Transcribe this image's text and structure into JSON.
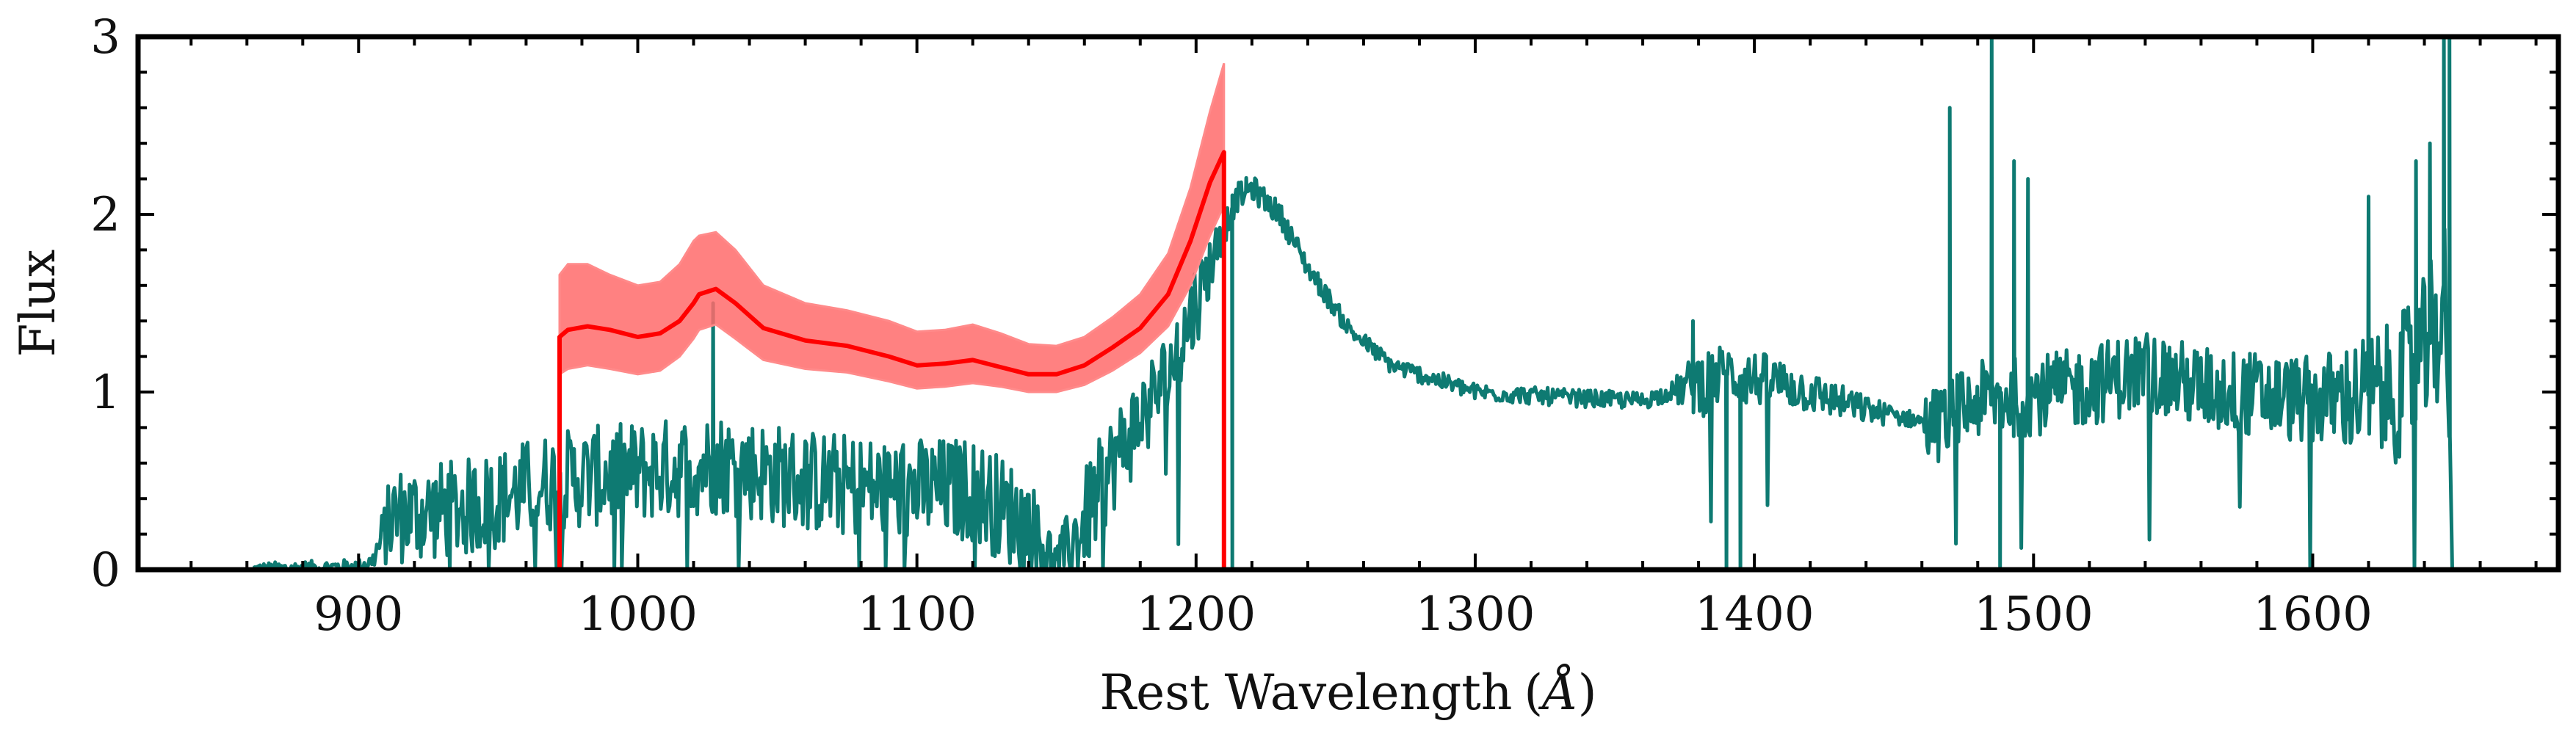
{
  "chart_data": {
    "type": "line",
    "xlabel": "Rest Wavelength",
    "xlabel_unit": "Å",
    "ylabel": "Flux",
    "xlim": [
      821,
      1688
    ],
    "ylim": [
      0,
      3
    ],
    "x_ticks": [
      900,
      1000,
      1100,
      1200,
      1300,
      1400,
      1500,
      1600
    ],
    "y_ticks": [
      0,
      1,
      2,
      3
    ],
    "x_minor_step": 20,
    "y_minor_step": 0.2,
    "grid": false,
    "series": [
      {
        "role": "observed spectrum",
        "color": "#0e7a72",
        "style": "line",
        "anchors": [
          [
            862,
            0.0
          ],
          [
            900,
            0.02
          ],
          [
            905,
            0.05
          ],
          [
            912,
            0.3
          ],
          [
            940,
            0.35
          ],
          [
            970,
            0.5
          ],
          [
            1000,
            0.55
          ],
          [
            1030,
            0.6
          ],
          [
            1060,
            0.5
          ],
          [
            1090,
            0.45
          ],
          [
            1120,
            0.45
          ],
          [
            1140,
            0.25
          ],
          [
            1150,
            0.05
          ],
          [
            1158,
            0.2
          ],
          [
            1170,
            0.6
          ],
          [
            1190,
            1.1
          ],
          [
            1200,
            1.5
          ],
          [
            1207,
            1.8
          ],
          [
            1212,
            2.0
          ],
          [
            1215,
            2.1
          ],
          [
            1220,
            2.15
          ],
          [
            1230,
            2.0
          ],
          [
            1240,
            1.7
          ],
          [
            1255,
            1.35
          ],
          [
            1270,
            1.15
          ],
          [
            1300,
            1.0
          ],
          [
            1330,
            0.97
          ],
          [
            1360,
            0.95
          ],
          [
            1390,
            1.1
          ],
          [
            1410,
            1.05
          ],
          [
            1440,
            0.9
          ],
          [
            1465,
            0.82
          ],
          [
            1480,
            0.95
          ],
          [
            1510,
            1.0
          ],
          [
            1540,
            1.12
          ],
          [
            1560,
            1.02
          ],
          [
            1600,
            0.95
          ],
          [
            1630,
            1.0
          ],
          [
            1640,
            1.2
          ],
          [
            1648,
            1.5
          ],
          [
            1650,
            0.0
          ]
        ],
        "noise": [
          [
            862,
            0.04
          ],
          [
            905,
            0.04
          ],
          [
            912,
            0.28
          ],
          [
            1140,
            0.3
          ],
          [
            1150,
            0.1
          ],
          [
            1158,
            0.3
          ],
          [
            1200,
            0.25
          ],
          [
            1212,
            0.08
          ],
          [
            1260,
            0.05
          ],
          [
            1300,
            0.05
          ],
          [
            1370,
            0.05
          ],
          [
            1380,
            0.2
          ],
          [
            1420,
            0.12
          ],
          [
            1460,
            0.04
          ],
          [
            1462,
            0.22
          ],
          [
            1600,
            0.25
          ],
          [
            1650,
            0.5
          ]
        ],
        "spikes": [
          [
            1470,
            2.6
          ],
          [
            1485,
            3.0
          ],
          [
            1493,
            2.3
          ],
          [
            1498,
            2.2
          ],
          [
            1620,
            2.1
          ],
          [
            1637,
            2.3
          ],
          [
            1642,
            2.4
          ],
          [
            1647,
            3.0
          ],
          [
            1649,
            3.0
          ],
          [
            1210,
            2.1
          ],
          [
            1218,
            2.2
          ],
          [
            1027,
            1.5
          ],
          [
            1378,
            1.4
          ],
          [
            1390,
            0.0
          ],
          [
            1395,
            0.0
          ],
          [
            1213,
            0.0
          ],
          [
            1148,
            0.0
          ],
          [
            1488,
            0.0
          ]
        ]
      },
      {
        "role": "model continuum (median)",
        "color": "#ff0000",
        "style": "line",
        "x": [
          972,
          975,
          982,
          990,
          1000,
          1008,
          1015,
          1020,
          1022,
          1028,
          1035,
          1045,
          1060,
          1075,
          1090,
          1100,
          1110,
          1120,
          1130,
          1140,
          1150,
          1160,
          1170,
          1180,
          1190,
          1198,
          1205,
          1210
        ],
        "y": [
          1.31,
          1.35,
          1.37,
          1.35,
          1.31,
          1.33,
          1.4,
          1.5,
          1.55,
          1.58,
          1.5,
          1.36,
          1.29,
          1.26,
          1.2,
          1.15,
          1.16,
          1.18,
          1.14,
          1.1,
          1.1,
          1.15,
          1.25,
          1.36,
          1.55,
          1.85,
          2.18,
          2.35
        ]
      },
      {
        "role": "model uncertainty band",
        "color": "#ff6b6b",
        "style": "band",
        "x": [
          972,
          975,
          982,
          990,
          1000,
          1008,
          1015,
          1020,
          1022,
          1028,
          1035,
          1045,
          1060,
          1075,
          1090,
          1100,
          1110,
          1120,
          1130,
          1140,
          1150,
          1160,
          1170,
          1180,
          1190,
          1198,
          1205,
          1210
        ],
        "lower": [
          1.1,
          1.13,
          1.15,
          1.13,
          1.1,
          1.12,
          1.2,
          1.3,
          1.35,
          1.38,
          1.3,
          1.18,
          1.13,
          1.11,
          1.06,
          1.02,
          1.03,
          1.05,
          1.03,
          1.0,
          1.0,
          1.04,
          1.12,
          1.22,
          1.37,
          1.6,
          1.88,
          2.05
        ],
        "upper": [
          1.66,
          1.72,
          1.72,
          1.66,
          1.6,
          1.62,
          1.72,
          1.85,
          1.88,
          1.9,
          1.8,
          1.6,
          1.5,
          1.46,
          1.4,
          1.34,
          1.35,
          1.38,
          1.33,
          1.27,
          1.26,
          1.31,
          1.42,
          1.55,
          1.78,
          2.15,
          2.58,
          2.85
        ]
      }
    ]
  }
}
